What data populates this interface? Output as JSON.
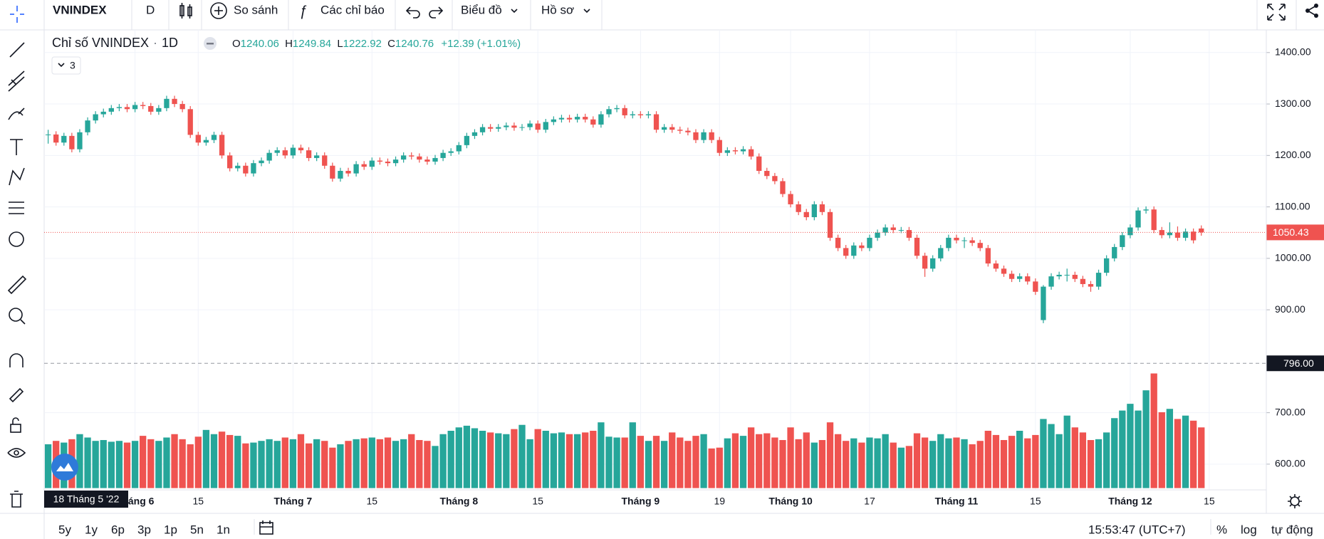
{
  "toolbar": {
    "symbol": "VNINDEX",
    "interval": "D",
    "compare": "So sánh",
    "indicators": "Các chỉ báo",
    "chart": "Biểu đồ",
    "profile": "Hồ sơ"
  },
  "chart_data": {
    "type": "candlestick",
    "title": "Chỉ số VNINDEX",
    "interval": "1D",
    "legend_labels": {
      "open": "O",
      "high": "H",
      "low": "L",
      "close": "C"
    },
    "change_label": "+12.39 (+1.01%)",
    "indicator_count": 3,
    "categories": [
      null,
      null,
      null,
      null,
      null,
      null,
      null,
      null,
      null,
      null,
      null,
      "Tháng 6",
      null,
      null,
      null,
      null,
      null,
      null,
      null,
      "15",
      null,
      null,
      null,
      null,
      null,
      null,
      null,
      null,
      null,
      null,
      null,
      "Tháng 7",
      null,
      null,
      null,
      null,
      null,
      null,
      null,
      null,
      null,
      "15",
      null,
      null,
      null,
      null,
      null,
      null,
      null,
      null,
      null,
      null,
      "Tháng 8",
      null,
      null,
      null,
      null,
      null,
      null,
      null,
      null,
      null,
      "15",
      null,
      null,
      null,
      null,
      null,
      null,
      null,
      null,
      null,
      null,
      null,
      null,
      "Tháng 9",
      null,
      null,
      null,
      null,
      null,
      null,
      null,
      null,
      null,
      "19",
      null,
      null,
      null,
      null,
      null,
      null,
      null,
      null,
      "Tháng 10",
      null,
      null,
      null,
      null,
      null,
      null,
      null,
      null,
      null,
      "17",
      null,
      null,
      null,
      null,
      null,
      null,
      null,
      null,
      null,
      null,
      "Tháng 11",
      null,
      null,
      null,
      null,
      null,
      null,
      null,
      null,
      null,
      "15",
      null,
      null,
      null,
      null,
      null,
      null,
      null,
      null,
      null,
      null,
      null,
      "Tháng 12",
      null,
      null,
      null,
      null,
      null,
      null,
      null,
      null,
      null,
      "15"
    ],
    "series": [
      {
        "up_color": "#26a69a",
        "down_color": "#ef5350",
        "open": [
          1240.06,
          1240.76,
          1225,
          1238,
          1212,
          1245,
          1268,
          1280,
          1285,
          1292,
          1294,
          1290,
          1298,
          1296,
          1285,
          1292,
          1310,
          1300,
          1290,
          1240,
          1225,
          1230,
          1240,
          1200,
          1175,
          1180,
          1165,
          1185,
          1190,
          1205,
          1210,
          1200,
          1215,
          1210,
          1195,
          1200,
          1180,
          1155,
          1170,
          1165,
          1183,
          1178,
          1190,
          1188,
          1185,
          1192,
          1200,
          1198,
          1192,
          1188,
          1195,
          1205,
          1208,
          1220,
          1238,
          1245,
          1255,
          1252,
          1255,
          1258,
          1254,
          1255,
          1262,
          1250,
          1265,
          1270,
          1273,
          1270,
          1275,
          1270,
          1260,
          1280,
          1290,
          1292,
          1278,
          1280,
          1278,
          1280,
          1250,
          1255,
          1250,
          1248,
          1245,
          1230,
          1245,
          1230,
          1205,
          1210,
          1208,
          1212,
          1198,
          1170,
          1160,
          1150,
          1125,
          1105,
          1090,
          1080,
          1105,
          1090,
          1040,
          1020,
          1005,
          1025,
          1020,
          1040,
          1050,
          1060,
          1055,
          1055,
          1040,
          1005,
          980,
          1000,
          1020,
          1040,
          1035,
          1035,
          1030,
          1020,
          990,
          980,
          970,
          960,
          965,
          955,
          880,
          945,
          965,
          968,
          968,
          960,
          950,
          945,
          972,
          1000,
          1022,
          1045,
          1060,
          1093,
          1095,
          1055,
          1045,
          1050,
          1040,
          1052,
          1058,
          null
        ],
        "high": [
          1249.84,
          1247,
          1244,
          1244,
          1251,
          1274,
          1286,
          1291,
          1298,
          1300,
          1300,
          1304,
          1304,
          1302,
          1298,
          1316,
          1316,
          1306,
          1296,
          1246,
          1236,
          1246,
          1246,
          1206,
          1186,
          1186,
          1191,
          1196,
          1211,
          1216,
          1216,
          1221,
          1221,
          1216,
          1206,
          1206,
          1186,
          1176,
          1176,
          1189,
          1189,
          1196,
          1196,
          1194,
          1198,
          1206,
          1206,
          1204,
          1198,
          1201,
          1211,
          1214,
          1226,
          1244,
          1251,
          1261,
          1261,
          1261,
          1264,
          1264,
          1261,
          1268,
          1268,
          1271,
          1276,
          1279,
          1279,
          1281,
          1281,
          1276,
          1286,
          1296,
          1298,
          1298,
          1286,
          1286,
          1286,
          1286,
          1261,
          1261,
          1256,
          1254,
          1251,
          1251,
          1251,
          1236,
          1216,
          1216,
          1218,
          1218,
          1204,
          1176,
          1166,
          1156,
          1131,
          1111,
          1096,
          1111,
          1111,
          1096,
          1046,
          1026,
          1031,
          1031,
          1046,
          1056,
          1066,
          1066,
          1061,
          1061,
          1046,
          1011,
          1006,
          1026,
          1046,
          1046,
          1041,
          1041,
          1036,
          1026,
          996,
          986,
          976,
          971,
          971,
          961,
          948,
          971,
          974,
          980,
          974,
          966,
          956,
          978,
          1006,
          1028,
          1051,
          1066,
          1099,
          1101,
          1101,
          1061,
          1070,
          1062,
          1058,
          1058,
          1064,
          null
        ],
        "low": [
          1222.92,
          1219,
          1219,
          1206,
          1206,
          1239,
          1262,
          1274,
          1279,
          1286,
          1284,
          1284,
          1290,
          1279,
          1279,
          1286,
          1294,
          1284,
          1234,
          1219,
          1219,
          1224,
          1194,
          1169,
          1169,
          1159,
          1159,
          1179,
          1184,
          1199,
          1194,
          1194,
          1204,
          1189,
          1189,
          1174,
          1149,
          1149,
          1159,
          1159,
          1172,
          1172,
          1182,
          1179,
          1179,
          1186,
          1192,
          1186,
          1182,
          1182,
          1189,
          1199,
          1202,
          1214,
          1232,
          1239,
          1246,
          1246,
          1249,
          1248,
          1248,
          1249,
          1244,
          1244,
          1259,
          1264,
          1264,
          1264,
          1264,
          1254,
          1254,
          1274,
          1284,
          1272,
          1272,
          1272,
          1272,
          1244,
          1244,
          1244,
          1242,
          1239,
          1224,
          1224,
          1224,
          1199,
          1199,
          1202,
          1202,
          1192,
          1164,
          1154,
          1144,
          1119,
          1099,
          1084,
          1074,
          1074,
          1084,
          1034,
          1014,
          999,
          999,
          1014,
          1014,
          1034,
          1044,
          1049,
          1049,
          1034,
          999,
          964,
          974,
          994,
          1014,
          1029,
          1020,
          1024,
          1014,
          984,
          974,
          964,
          954,
          954,
          949,
          929,
          874,
          939,
          959,
          955,
          954,
          944,
          935,
          939,
          966,
          994,
          1016,
          1039,
          1054,
          1087,
          1049,
          1039,
          1039,
          1034,
          1034,
          1029,
          1044,
          null
        ],
        "close": [
          1240.76,
          1225,
          1238,
          1212,
          1245,
          1268,
          1280,
          1285,
          1292,
          1294,
          1290,
          1298,
          1296,
          1285,
          1292,
          1310,
          1300,
          1290,
          1240,
          1225,
          1230,
          1240,
          1200,
          1175,
          1180,
          1165,
          1185,
          1190,
          1205,
          1210,
          1200,
          1215,
          1210,
          1195,
          1200,
          1180,
          1155,
          1170,
          1165,
          1183,
          1178,
          1190,
          1188,
          1185,
          1192,
          1200,
          1198,
          1192,
          1188,
          1195,
          1205,
          1208,
          1220,
          1238,
          1245,
          1255,
          1252,
          1255,
          1258,
          1254,
          1255,
          1262,
          1250,
          1265,
          1270,
          1273,
          1270,
          1275,
          1270,
          1260,
          1280,
          1290,
          1292,
          1278,
          1280,
          1278,
          1280,
          1250,
          1255,
          1250,
          1248,
          1245,
          1230,
          1245,
          1230,
          1205,
          1210,
          1208,
          1212,
          1198,
          1170,
          1160,
          1150,
          1125,
          1105,
          1090,
          1080,
          1105,
          1090,
          1040,
          1020,
          1005,
          1025,
          1020,
          1040,
          1050,
          1060,
          1055,
          1055,
          1040,
          1005,
          980,
          1000,
          1020,
          1040,
          1035,
          1035,
          1030,
          1020,
          990,
          980,
          970,
          960,
          965,
          955,
          935,
          945,
          965,
          968,
          968,
          960,
          950,
          945,
          972,
          1000,
          1022,
          1045,
          1060,
          1093,
          1095,
          1055,
          1045,
          1050,
          1040,
          1052,
          1035,
          1050.43,
          null
        ]
      }
    ],
    "volume": {
      "values": [
        520,
        560,
        540,
        580,
        640,
        600,
        560,
        570,
        550,
        560,
        540,
        560,
        620,
        580,
        560,
        600,
        640,
        580,
        520,
        610,
        690,
        640,
        670,
        630,
        620,
        530,
        540,
        560,
        580,
        560,
        600,
        580,
        640,
        530,
        580,
        560,
        480,
        520,
        560,
        580,
        590,
        600,
        580,
        600,
        560,
        580,
        640,
        570,
        560,
        500,
        640,
        680,
        720,
        740,
        710,
        680,
        660,
        650,
        640,
        700,
        750,
        580,
        700,
        680,
        650,
        660,
        640,
        640,
        660,
        680,
        780,
        610,
        600,
        600,
        780,
        620,
        560,
        620,
        560,
        660,
        600,
        560,
        620,
        640,
        470,
        480,
        590,
        650,
        620,
        720,
        640,
        650,
        600,
        570,
        720,
        580,
        660,
        540,
        570,
        780,
        640,
        560,
        590,
        540,
        600,
        590,
        640,
        540,
        480,
        500,
        650,
        600,
        560,
        640,
        590,
        600,
        580,
        520,
        560,
        680,
        630,
        570,
        620,
        680,
        590,
        630,
        820,
        760,
        640,
        860,
        720,
        660,
        570,
        580,
        660,
        830,
        920,
        1000,
        920,
        1160,
        1360,
        900,
        940,
        820,
        860,
        800,
        720,
        null
      ]
    },
    "ylim": [
      550,
      1444
    ],
    "yticks": [
      {
        "value": 600,
        "label": "600.00"
      },
      {
        "value": 700,
        "label": "700.00"
      },
      {
        "value": 900,
        "label": "900.00"
      },
      {
        "value": 1000,
        "label": "1000.00"
      },
      {
        "value": 1100,
        "label": "1100.00"
      },
      {
        "value": 1200,
        "label": "1200.00"
      },
      {
        "value": 1300,
        "label": "1300.00"
      },
      {
        "value": 1400,
        "label": "1400.00"
      }
    ],
    "grid": true,
    "crosshair": {
      "price": {
        "value": 796,
        "label": "796.00"
      },
      "date": "18 Tháng 5 '22"
    }
  },
  "bottom_bar": {
    "ranges": [
      "5y",
      "1y",
      "6p",
      "3p",
      "1p",
      "5n",
      "1n"
    ],
    "time": "15:53:47 (UTC+7)",
    "percent": "%",
    "log": "log",
    "auto": "tự động"
  }
}
